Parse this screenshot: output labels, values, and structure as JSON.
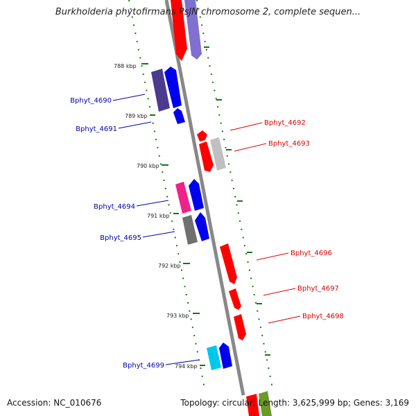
{
  "title": "Burkholderia phytofirmans PsJN chromosome 2, complete sequen...",
  "footer": {
    "accession": "Accession: NC_010676",
    "summary": "Topology: circular; Length: 3,625,999 bp; Genes: 3,169"
  },
  "ticks": [
    "788 kbp",
    "789 kbp",
    "790 kbp",
    "791 kbp",
    "792 kbp",
    "793 kbp",
    "794 kbp"
  ],
  "genes": [
    {
      "name": "Bphyt_4690",
      "strand": "minus",
      "color": "#0000aa"
    },
    {
      "name": "Bphyt_4691",
      "strand": "minus",
      "color": "#0000aa"
    },
    {
      "name": "Bphyt_4692",
      "strand": "plus",
      "color": "#dd0000"
    },
    {
      "name": "Bphyt_4693",
      "strand": "plus",
      "color": "#dd0000"
    },
    {
      "name": "Bphyt_4694",
      "strand": "minus",
      "color": "#0000aa"
    },
    {
      "name": "Bphyt_4695",
      "strand": "minus",
      "color": "#0000aa"
    },
    {
      "name": "Bphyt_4696",
      "strand": "plus",
      "color": "#dd0000"
    },
    {
      "name": "Bphyt_4697",
      "strand": "plus",
      "color": "#dd0000"
    },
    {
      "name": "Bphyt_4698",
      "strand": "plus",
      "color": "#dd0000"
    },
    {
      "name": "Bphyt_4699",
      "strand": "minus",
      "color": "#0000aa"
    }
  ],
  "palette": {
    "backbone": "#888888",
    "tick_color": "#117711",
    "red": "#ff0000",
    "blue": "#0000ee",
    "purple": "#4a3b8f",
    "lavender": "#8070d0",
    "magenta": "#ee2288",
    "gray": "#707070",
    "silver": "#c0c0c0",
    "cyan": "#00c8e8",
    "olive": "#6a9a2a"
  }
}
